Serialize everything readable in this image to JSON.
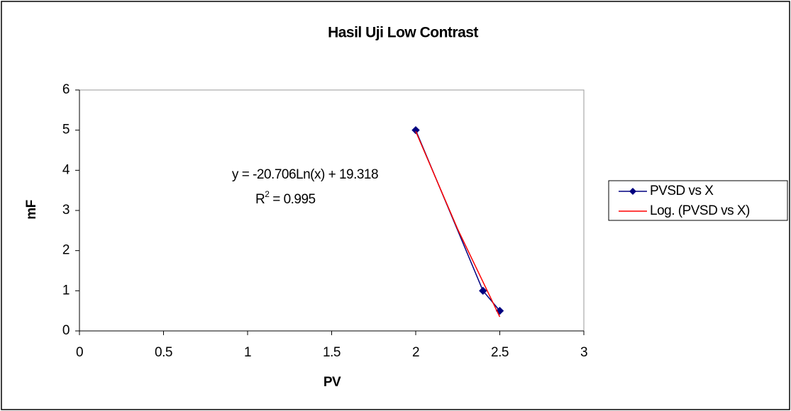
{
  "chart_data": {
    "type": "scatter",
    "title": "Hasil Uji Low Contrast",
    "x_label": "PV",
    "y_label": "mF",
    "xlim": [
      0,
      3
    ],
    "xticks": [
      0,
      0.5,
      1,
      1.5,
      2,
      2.5,
      3
    ],
    "ylim": [
      0,
      6
    ],
    "yticks": [
      0,
      1,
      2,
      3,
      4,
      5,
      6
    ],
    "legend": "right",
    "series": [
      {
        "name": "PVSD vs X",
        "color": "#000080",
        "marker": true,
        "x": [
          2,
          2.4,
          2.5
        ],
        "values": [
          5,
          1,
          0.5
        ]
      },
      {
        "name": "Log. (PVSD vs X)",
        "color": "#ff0000",
        "marker": false,
        "x": [
          2,
          2.25,
          2.5
        ],
        "values": [
          4.97,
          2.53,
          0.35
        ]
      }
    ],
    "annotations": {
      "equation": "y = -20.706Ln(x) + 19.318",
      "r2_base": "R",
      "r2_sup": "2",
      "r2_rest": " = 0.995"
    }
  }
}
